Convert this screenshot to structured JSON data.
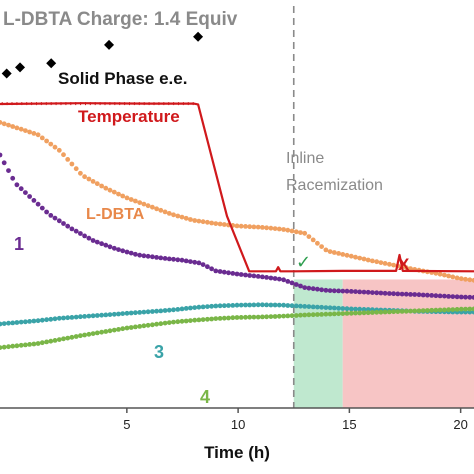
{
  "chart_data": {
    "type": "scatter",
    "title": "L-DBTA Charge: 1.4 Equiv",
    "xlabel": "Time (h)",
    "xlim": [
      -0.7,
      20.6
    ],
    "ylim": [
      0,
      100
    ],
    "xticks": [
      5,
      10,
      15,
      20
    ],
    "grid": false,
    "annotations": {
      "inline": "Inline",
      "racemization": "Racemization",
      "check": "✓",
      "cross": "X"
    },
    "regions": [
      {
        "name": "green",
        "x": [
          12.5,
          14.7
        ],
        "color": "#bfe8cf"
      },
      {
        "name": "red",
        "x": [
          14.7,
          20.6
        ],
        "color": "#f7c5c5"
      }
    ],
    "divider_x": 12.5,
    "series": [
      {
        "name": "Solid Phase e.e.",
        "kind": "diamond",
        "color": "#000000",
        "x": [
          -0.4,
          0.2,
          1.6,
          4.2,
          8.2
        ],
        "y": [
          82,
          83.5,
          84.5,
          89,
          91
        ]
      },
      {
        "name": "Temperature",
        "kind": "line",
        "color": "#d0191c",
        "x": [
          -0.7,
          3,
          6,
          8,
          8.2,
          9.5,
          10.5,
          11.7,
          11.8,
          11.9,
          12.5,
          14.7,
          17.1,
          17.25,
          17.4,
          20.6
        ],
        "y": [
          74.5,
          74.7,
          74.6,
          74.6,
          74.4,
          47,
          33.5,
          33.5,
          34.5,
          33.5,
          33.5,
          33.6,
          33.6,
          37.5,
          33.6,
          33.5
        ]
      },
      {
        "name": "L-DBTA",
        "kind": "dots",
        "color": "#f0a060",
        "x": [
          -0.7,
          1,
          2,
          3,
          4,
          5,
          6,
          7,
          8,
          9,
          10,
          11,
          12,
          13,
          14,
          15,
          16,
          17,
          18,
          19,
          20,
          20.6
        ],
        "y": [
          70,
          67,
          63,
          57,
          54,
          51.5,
          49.5,
          47.5,
          46,
          45.2,
          44.6,
          44.3,
          43.8,
          42.8,
          38.5,
          37.3,
          36.1,
          35,
          33.9,
          32.9,
          31.7,
          31.3
        ]
      },
      {
        "name": "1",
        "kind": "dots",
        "color": "#6a2c91",
        "x": [
          -0.7,
          0,
          0.8,
          1.5,
          2.5,
          3.5,
          4.5,
          5.5,
          6.5,
          7.5,
          8.3,
          9,
          10,
          11,
          12,
          13,
          14,
          15,
          16,
          17,
          18,
          19,
          20,
          20.6
        ],
        "y": [
          62,
          55,
          51,
          47.5,
          44,
          41,
          39,
          37.5,
          36.8,
          36.2,
          35.5,
          33.6,
          32.8,
          32.2,
          31.5,
          29.5,
          28.8,
          28.6,
          28.3,
          28,
          27.8,
          27.5,
          27.2,
          27.1
        ]
      },
      {
        "name": "3",
        "kind": "dots",
        "color": "#3aa3a8",
        "x": [
          -0.7,
          1,
          2,
          3,
          4,
          5,
          6,
          7,
          8,
          9,
          10,
          11,
          12,
          13,
          14,
          15,
          16,
          17,
          18,
          19,
          20,
          20.6
        ],
        "y": [
          20.6,
          21.4,
          22,
          22.4,
          22.8,
          23.2,
          23.6,
          24,
          24.6,
          25,
          25.2,
          25.3,
          25.2,
          24.9,
          24.6,
          24.3,
          24.1,
          23.9,
          23.7,
          23.6,
          23.5,
          23.5
        ]
      },
      {
        "name": "4",
        "kind": "dots",
        "color": "#7ab648",
        "x": [
          -0.7,
          1,
          2,
          3,
          4,
          5,
          6,
          7,
          8,
          9,
          10,
          11,
          12,
          13,
          14,
          15,
          16,
          17,
          18,
          19,
          20,
          20.6
        ],
        "y": [
          14.8,
          15.8,
          16.8,
          17.8,
          18.7,
          19.6,
          20.3,
          21,
          21.5,
          21.9,
          22.2,
          22.3,
          22.5,
          22.8,
          23,
          23.2,
          23.4,
          23.6,
          23.8,
          24,
          24.2,
          24.3
        ]
      }
    ]
  }
}
